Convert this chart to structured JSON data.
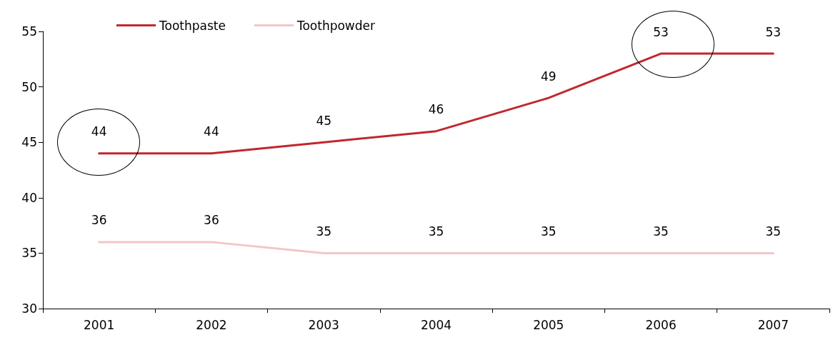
{
  "chart_data": {
    "type": "line",
    "categories": [
      "2001",
      "2002",
      "2003",
      "2004",
      "2005",
      "2006",
      "2007"
    ],
    "series": [
      {
        "name": "Toothpaste",
        "color": "#c1272d",
        "values": [
          44,
          44,
          45,
          46,
          49,
          53,
          53
        ]
      },
      {
        "name": "Toothpowder",
        "color": "#f3c6c8",
        "values": [
          36,
          36,
          35,
          35,
          35,
          35,
          35
        ]
      }
    ],
    "ylim": [
      30,
      55
    ],
    "yticks": [
      30,
      35,
      40,
      45,
      50,
      55
    ],
    "grid": false,
    "legend": "top left",
    "marker": "none",
    "line_style": "solid",
    "data_labels": true
  }
}
